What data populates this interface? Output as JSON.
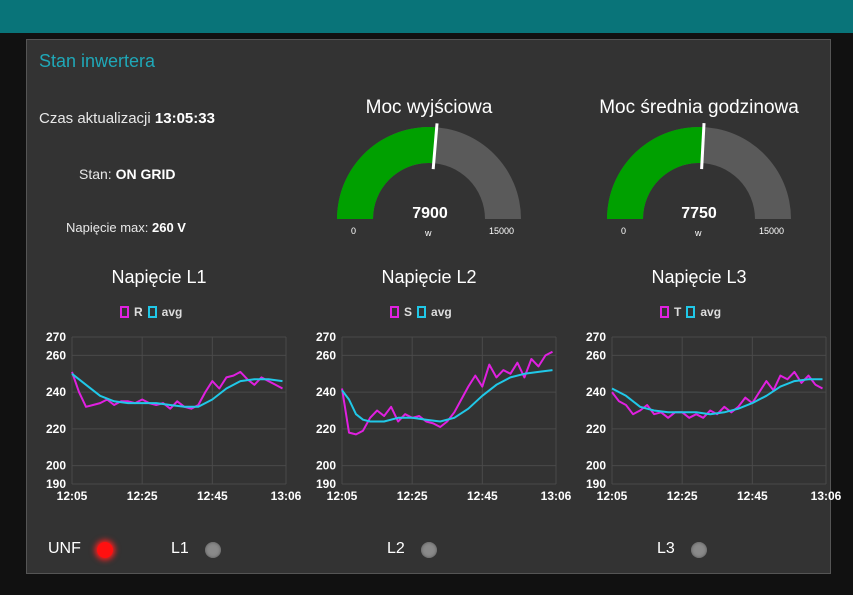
{
  "header": {
    "background_color": "#097479"
  },
  "panel": {
    "title": "Stan inwertera"
  },
  "info": {
    "update_label": "Czas aktualizacji",
    "update_time": "13:05:33",
    "state_label": "Stan:",
    "state_value": "ON GRID",
    "vmax_label": "Napięcie max:",
    "vmax_value": "260 V"
  },
  "gauges": [
    {
      "title": "Moc wyjściowa",
      "value": "7900",
      "value_num": 7900,
      "unit": "w",
      "min": "0",
      "max": "15000",
      "min_num": 0,
      "max_num": 15000,
      "fill_color": "#00a000",
      "track_color": "#5a5a5a"
    },
    {
      "title": "Moc średnia godzinowa",
      "value": "7750",
      "value_num": 7750,
      "unit": "w",
      "min": "0",
      "max": "15000",
      "min_num": 0,
      "max_num": 15000,
      "fill_color": "#00a000",
      "track_color": "#5a5a5a"
    }
  ],
  "charts_text": [
    {
      "title": "Napięcie L1",
      "series_name": "R",
      "avg_name": "avg"
    },
    {
      "title": "Napięcie L2",
      "series_name": "S",
      "avg_name": "avg"
    },
    {
      "title": "Napięcie L3",
      "series_name": "T",
      "avg_name": "avg"
    }
  ],
  "chart_data": [
    {
      "type": "line",
      "title": "Napięcie L1",
      "x_ticks": [
        "12:05",
        "12:25",
        "12:45",
        "13:06"
      ],
      "y_ticks": [
        190,
        200,
        220,
        240,
        260,
        270
      ],
      "ylim": [
        190,
        270
      ],
      "x_minutes": [
        0,
        61
      ],
      "series": [
        {
          "name": "R",
          "color": "#e020e0",
          "x": [
            0,
            2,
            4,
            6,
            8,
            10,
            12,
            14,
            16,
            18,
            20,
            22,
            24,
            26,
            28,
            30,
            32,
            34,
            36,
            38,
            40,
            42,
            44,
            46,
            48,
            50,
            52,
            54,
            56,
            58,
            60
          ],
          "values": [
            251,
            240,
            232,
            233,
            234,
            236,
            233,
            235,
            235,
            234,
            236,
            234,
            233,
            234,
            231,
            235,
            232,
            231,
            233,
            240,
            246,
            242,
            248,
            249,
            251,
            247,
            244,
            248,
            246,
            244,
            242
          ]
        },
        {
          "name": "avg",
          "color": "#20c8e8",
          "x": [
            0,
            4,
            8,
            12,
            16,
            20,
            24,
            28,
            32,
            36,
            40,
            44,
            48,
            52,
            56,
            60
          ],
          "values": [
            250,
            244,
            238,
            235,
            234,
            234,
            234,
            233,
            232,
            232,
            236,
            242,
            246,
            247,
            247,
            246
          ]
        }
      ]
    },
    {
      "type": "line",
      "title": "Napięcie L2",
      "x_ticks": [
        "12:05",
        "12:25",
        "12:45",
        "13:06"
      ],
      "y_ticks": [
        190,
        200,
        220,
        240,
        260,
        270
      ],
      "ylim": [
        190,
        270
      ],
      "x_minutes": [
        0,
        61
      ],
      "series": [
        {
          "name": "S",
          "color": "#e020e0",
          "x": [
            0,
            1,
            2,
            4,
            6,
            8,
            10,
            12,
            14,
            16,
            18,
            20,
            22,
            24,
            26,
            28,
            30,
            32,
            34,
            36,
            38,
            40,
            42,
            44,
            46,
            48,
            50,
            52,
            54,
            56,
            58,
            60
          ],
          "values": [
            242,
            230,
            218,
            217,
            219,
            226,
            230,
            227,
            232,
            224,
            228,
            226,
            227,
            224,
            223,
            221,
            224,
            229,
            236,
            243,
            249,
            243,
            255,
            248,
            252,
            250,
            256,
            248,
            258,
            254,
            260,
            262
          ]
        },
        {
          "name": "avg",
          "color": "#20c8e8",
          "x": [
            0,
            2,
            4,
            6,
            8,
            12,
            16,
            20,
            24,
            28,
            32,
            36,
            40,
            44,
            48,
            52,
            56,
            60
          ],
          "values": [
            241,
            236,
            228,
            225,
            224,
            224,
            226,
            226,
            225,
            224,
            226,
            231,
            238,
            244,
            248,
            250,
            251,
            252
          ]
        }
      ]
    },
    {
      "type": "line",
      "title": "Napięcie L3",
      "x_ticks": [
        "12:05",
        "12:25",
        "12:45",
        "13:06"
      ],
      "y_ticks": [
        190,
        200,
        220,
        240,
        260,
        270
      ],
      "ylim": [
        190,
        270
      ],
      "x_minutes": [
        0,
        61
      ],
      "series": [
        {
          "name": "T",
          "color": "#e020e0",
          "x": [
            0,
            2,
            4,
            6,
            8,
            10,
            12,
            14,
            16,
            18,
            20,
            22,
            24,
            26,
            28,
            30,
            32,
            34,
            36,
            38,
            40,
            42,
            44,
            46,
            48,
            50,
            52,
            54,
            56,
            58,
            60
          ],
          "values": [
            240,
            235,
            233,
            228,
            230,
            233,
            228,
            229,
            226,
            229,
            229,
            226,
            228,
            226,
            230,
            228,
            232,
            229,
            232,
            237,
            234,
            240,
            246,
            241,
            249,
            247,
            251,
            245,
            249,
            244,
            242
          ]
        },
        {
          "name": "avg",
          "color": "#20c8e8",
          "x": [
            0,
            4,
            8,
            12,
            16,
            20,
            24,
            28,
            32,
            36,
            40,
            44,
            48,
            52,
            56,
            60
          ],
          "values": [
            242,
            238,
            232,
            230,
            229,
            229,
            229,
            228,
            229,
            231,
            234,
            238,
            243,
            246,
            247,
            247
          ]
        }
      ]
    }
  ],
  "leds": [
    {
      "label": "UNF",
      "state": "on",
      "color": "#ff1010"
    },
    {
      "label": "L1",
      "state": "off",
      "color": "#8a8a8a"
    },
    {
      "label": "L2",
      "state": "off",
      "color": "#8a8a8a"
    },
    {
      "label": "L3",
      "state": "off",
      "color": "#8a8a8a"
    }
  ]
}
